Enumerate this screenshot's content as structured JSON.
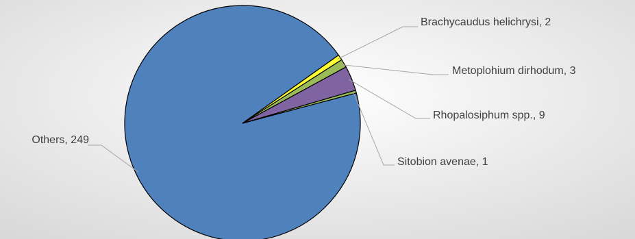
{
  "chart_data": {
    "type": "pie",
    "title": "",
    "background": "#f0f0f0",
    "slices": [
      {
        "label": "Others",
        "value": 249,
        "color": "#4f81bd",
        "display": "Others, 249"
      },
      {
        "label": "Brachycaudus helichrysi",
        "value": 2,
        "color": "#ffff33",
        "display": "Brachycaudus helichrysi, 2"
      },
      {
        "label": "Metoplohium dirhodum",
        "value": 3,
        "color": "#9bbb59",
        "display": "Metoplohium dirhodum, 3"
      },
      {
        "label": "Rhopalosiphum spp.",
        "value": 9,
        "color": "#8064a2",
        "display": "Rhopalosiphum spp., 9"
      },
      {
        "label": "Sitobion avenae",
        "value": 1,
        "color": "#9bbb59",
        "display": "Sitobion avenae, 1"
      }
    ]
  }
}
